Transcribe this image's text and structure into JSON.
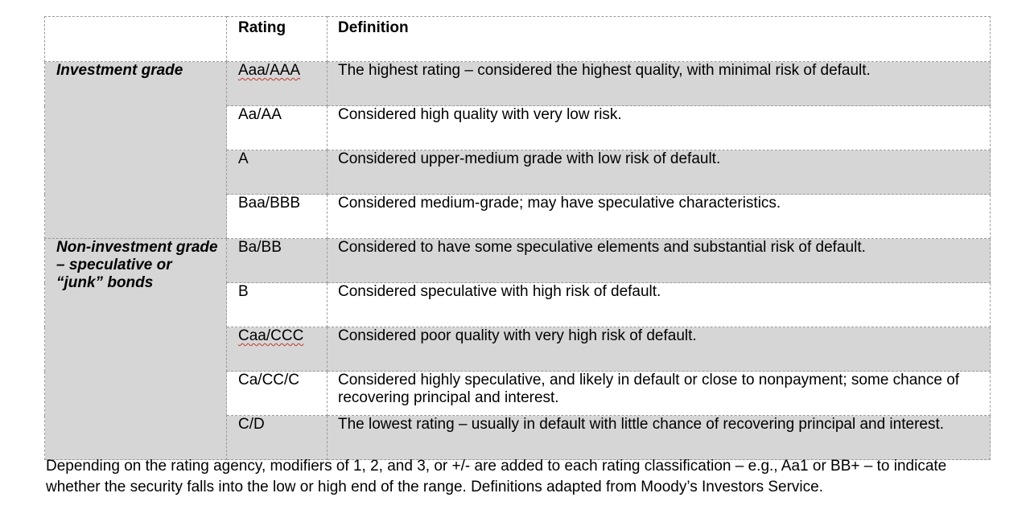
{
  "table": {
    "headers": {
      "blank": "",
      "rating": "Rating",
      "definition": "Definition"
    },
    "groups": [
      {
        "label": "Investment grade",
        "rows": [
          {
            "rating": "Aaa/AAA",
            "definition": "The highest rating – considered the highest quality, with minimal risk of default.",
            "shade": "gray",
            "flagged": true
          },
          {
            "rating": "Aa/AA",
            "definition": "Considered high quality with very low risk.",
            "shade": "white",
            "flagged": false
          },
          {
            "rating": "A",
            "definition": "Considered upper-medium grade with low risk of default.",
            "shade": "gray",
            "flagged": false
          },
          {
            "rating": "Baa/BBB",
            "definition": "Considered medium-grade; may have speculative characteristics.",
            "shade": "white",
            "flagged": false
          }
        ]
      },
      {
        "label": "Non-investment grade – speculative or “junk” bonds",
        "rows": [
          {
            "rating": "Ba/BB",
            "definition": "Considered to have some speculative elements and substantial risk of default.",
            "shade": "gray",
            "flagged": false
          },
          {
            "rating": "B",
            "definition": "Considered speculative with high risk of default.",
            "shade": "white",
            "flagged": false
          },
          {
            "rating": "Caa/CCC",
            "definition": "Considered poor quality with very high risk of default.",
            "shade": "gray",
            "flagged": true
          },
          {
            "rating": "Ca/CC/C",
            "definition": "Considered highly speculative, and likely in default or close to nonpayment; some chance of recovering principal and interest.",
            "shade": "white",
            "flagged": false
          },
          {
            "rating": "C/D",
            "definition": "The lowest rating – usually in default with little chance of recovering principal and interest.",
            "shade": "gray",
            "flagged": false
          }
        ]
      }
    ]
  },
  "footnote": "Depending on the rating agency, modifiers of 1, 2, and 3, or +/- are added to each rating classification – e.g., Aa1 or BB+ – to indicate whether the security falls into the low or high end of the range. Definitions adapted from Moody’s Investors Service."
}
